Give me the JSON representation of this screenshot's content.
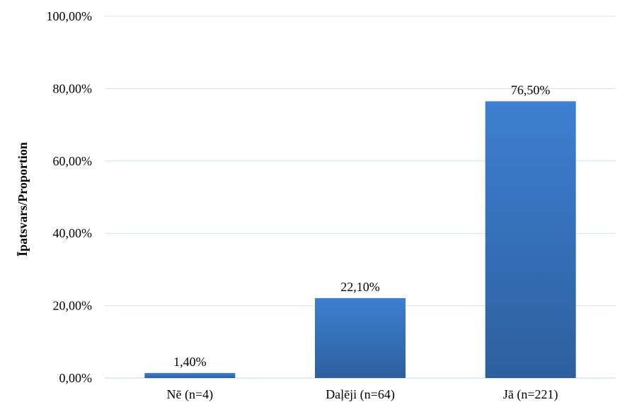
{
  "chart_data": {
    "type": "bar",
    "categories": [
      "Nē (n=4)",
      "Daļēji (n=64)",
      "Jā (n=221)"
    ],
    "values": [
      1.4,
      22.1,
      76.5
    ],
    "value_labels": [
      "1,40%",
      "22,10%",
      "76,50%"
    ],
    "title": "",
    "xlabel": "",
    "ylabel": "Īpatsvars/Proportion",
    "ylim": [
      0,
      100
    ],
    "yticks": [
      0,
      20,
      40,
      60,
      80,
      100
    ],
    "ytick_labels": [
      "0,00%",
      "20,00%",
      "40,00%",
      "60,00%",
      "80,00%",
      "100,00%"
    ],
    "grid": true,
    "legend": "none",
    "colors": {
      "bar_top": "#3d7fd1",
      "bar_bottom": "#2d5f9e",
      "grid": "#d6e0ee"
    }
  }
}
